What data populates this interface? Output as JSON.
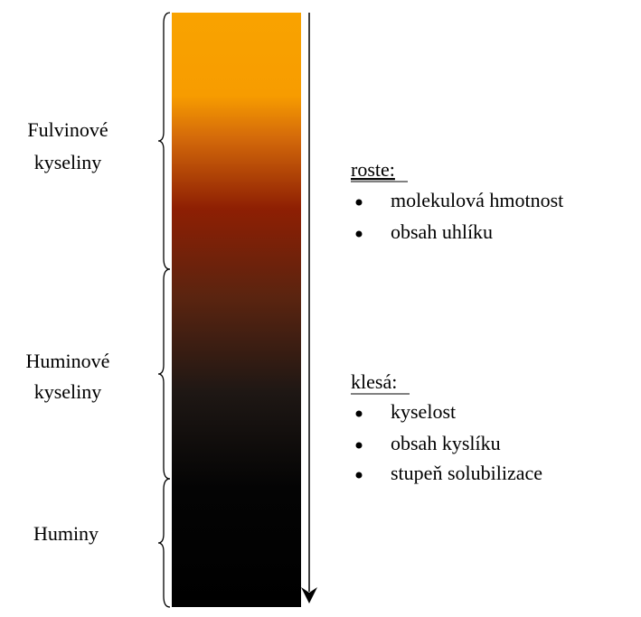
{
  "groups": [
    {
      "lines": [
        "Fulvinové",
        "kyseliny"
      ]
    },
    {
      "lines": [
        "Huminové",
        "kyseliny"
      ]
    },
    {
      "lines": [
        "Huminy"
      ]
    }
  ],
  "increases": {
    "heading": "roste:",
    "items": [
      "molekulová hmotnost",
      "obsah uhlíku"
    ]
  },
  "decreases": {
    "heading": "klesá:",
    "items": [
      "kyselost",
      "obsah kyslíku",
      "stupeň solubilizace"
    ]
  }
}
